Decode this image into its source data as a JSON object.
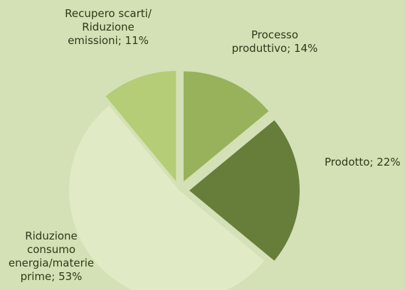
{
  "chart_data": {
    "type": "pie",
    "title": "",
    "slices": [
      {
        "label": "Processo produttivo",
        "value": 14,
        "display": "Processo\nproduttivo; 14%",
        "color": "#97b25b",
        "exploded": true
      },
      {
        "label": "Prodotto",
        "value": 22,
        "display": "Prodotto; 22%",
        "color": "#677d3a",
        "exploded": true
      },
      {
        "label": "Riduzione consumo energia/materie prime",
        "value": 53,
        "display": "Riduzione\nconsumo\nenergia/materie\nprime; 53%",
        "color": "#e0eac4",
        "exploded": false
      },
      {
        "label": "Recupero scarti/ Riduzione emissioni",
        "value": 11,
        "display": "Recupero scarti/\nRiduzione\nemissioni; 11%",
        "color": "#b4cd76",
        "exploded": true
      }
    ]
  },
  "colors": {
    "background": "#d4e0b5",
    "label_text": "#2d3a1a"
  }
}
